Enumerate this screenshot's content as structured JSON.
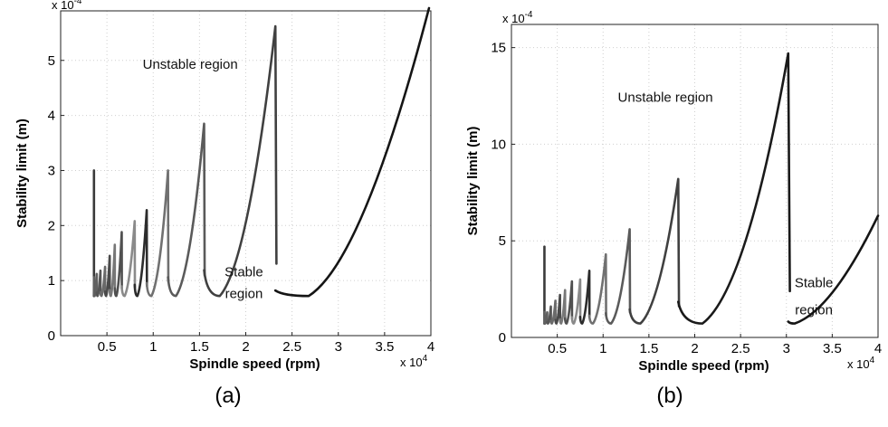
{
  "chart_data": [
    {
      "type": "line",
      "caption": "(a)",
      "xlabel": "Spindle speed (rpm)",
      "ylabel": "Stability limit (m)",
      "x_multiplier": "x 10",
      "x_exponent": "4",
      "y_multiplier": "x 10",
      "y_exponent": "-4",
      "xlim": [
        0,
        40000
      ],
      "ylim": [
        0,
        5.9
      ],
      "xticks": [
        5000,
        10000,
        15000,
        20000,
        25000,
        30000,
        35000,
        40000
      ],
      "xtick_labels": [
        "0.5",
        "1",
        "1.5",
        "2",
        "2.5",
        "3",
        "3.5",
        "4"
      ],
      "yticks": [
        0,
        1,
        2,
        3,
        4,
        5
      ],
      "ytick_labels": [
        "0",
        "1",
        "2",
        "3",
        "4",
        "5"
      ],
      "grid": true,
      "min_value": 0.72,
      "lobes": [
        {
          "peak_x": 3600,
          "peak_y": 3.0
        },
        {
          "peak_x": 3900,
          "peak_y": 1.12
        },
        {
          "peak_x": 4300,
          "peak_y": 1.18
        },
        {
          "peak_x": 4800,
          "peak_y": 1.25
        },
        {
          "peak_x": 5300,
          "peak_y": 1.45
        },
        {
          "peak_x": 5850,
          "peak_y": 1.65
        },
        {
          "peak_x": 6600,
          "peak_y": 1.88
        },
        {
          "peak_x": 8000,
          "peak_y": 2.08
        },
        {
          "peak_x": 9300,
          "peak_y": 2.28
        },
        {
          "peak_x": 11600,
          "peak_y": 3.0
        },
        {
          "peak_x": 15500,
          "peak_y": 3.85
        },
        {
          "peak_x": 23200,
          "peak_y": 5.62
        }
      ],
      "final_branch": {
        "min_x": 26800,
        "end_x": 39800,
        "end_y": 5.95
      },
      "annotations": [
        {
          "text": "Unstable region",
          "x": 14000,
          "y": 4.85
        },
        {
          "text": "Stable",
          "x": 19800,
          "y": 1.08
        },
        {
          "text": "region",
          "x": 19800,
          "y": 0.68
        }
      ]
    },
    {
      "type": "line",
      "caption": "(b)",
      "xlabel": "Spindle speed (rpm)",
      "ylabel": "Stability limit (m)",
      "x_multiplier": "x 10",
      "x_exponent": "4",
      "y_multiplier": "x 10",
      "y_exponent": "-4",
      "xlim": [
        0,
        40000
      ],
      "ylim": [
        0,
        16.2
      ],
      "xticks": [
        5000,
        10000,
        15000,
        20000,
        25000,
        30000,
        35000,
        40000
      ],
      "xtick_labels": [
        "0.5",
        "1",
        "1.5",
        "2",
        "2.5",
        "3",
        "3.5",
        "4"
      ],
      "yticks": [
        0,
        5,
        10,
        15
      ],
      "ytick_labels": [
        "0",
        "5",
        "10",
        "15"
      ],
      "grid": true,
      "min_value": 0.72,
      "lobes": [
        {
          "peak_x": 3600,
          "peak_y": 4.7
        },
        {
          "peak_x": 3900,
          "peak_y": 1.3
        },
        {
          "peak_x": 4300,
          "peak_y": 1.6
        },
        {
          "peak_x": 4800,
          "peak_y": 1.9
        },
        {
          "peak_x": 5300,
          "peak_y": 2.2
        },
        {
          "peak_x": 5850,
          "peak_y": 2.45
        },
        {
          "peak_x": 6600,
          "peak_y": 2.9
        },
        {
          "peak_x": 7500,
          "peak_y": 3.0
        },
        {
          "peak_x": 8500,
          "peak_y": 3.45
        },
        {
          "peak_x": 10300,
          "peak_y": 4.3
        },
        {
          "peak_x": 12900,
          "peak_y": 5.6
        },
        {
          "peak_x": 18200,
          "peak_y": 8.2
        },
        {
          "peak_x": 30200,
          "peak_y": 14.7
        }
      ],
      "final_branch": {
        "min_x": 30900,
        "end_x": 40000,
        "end_y": 6.3
      },
      "annotations": [
        {
          "text": "Unstable region",
          "x": 16800,
          "y": 12.2
        },
        {
          "text": "Stable",
          "x": 33000,
          "y": 2.6
        },
        {
          "text": "region",
          "x": 33000,
          "y": 1.2
        }
      ]
    }
  ]
}
